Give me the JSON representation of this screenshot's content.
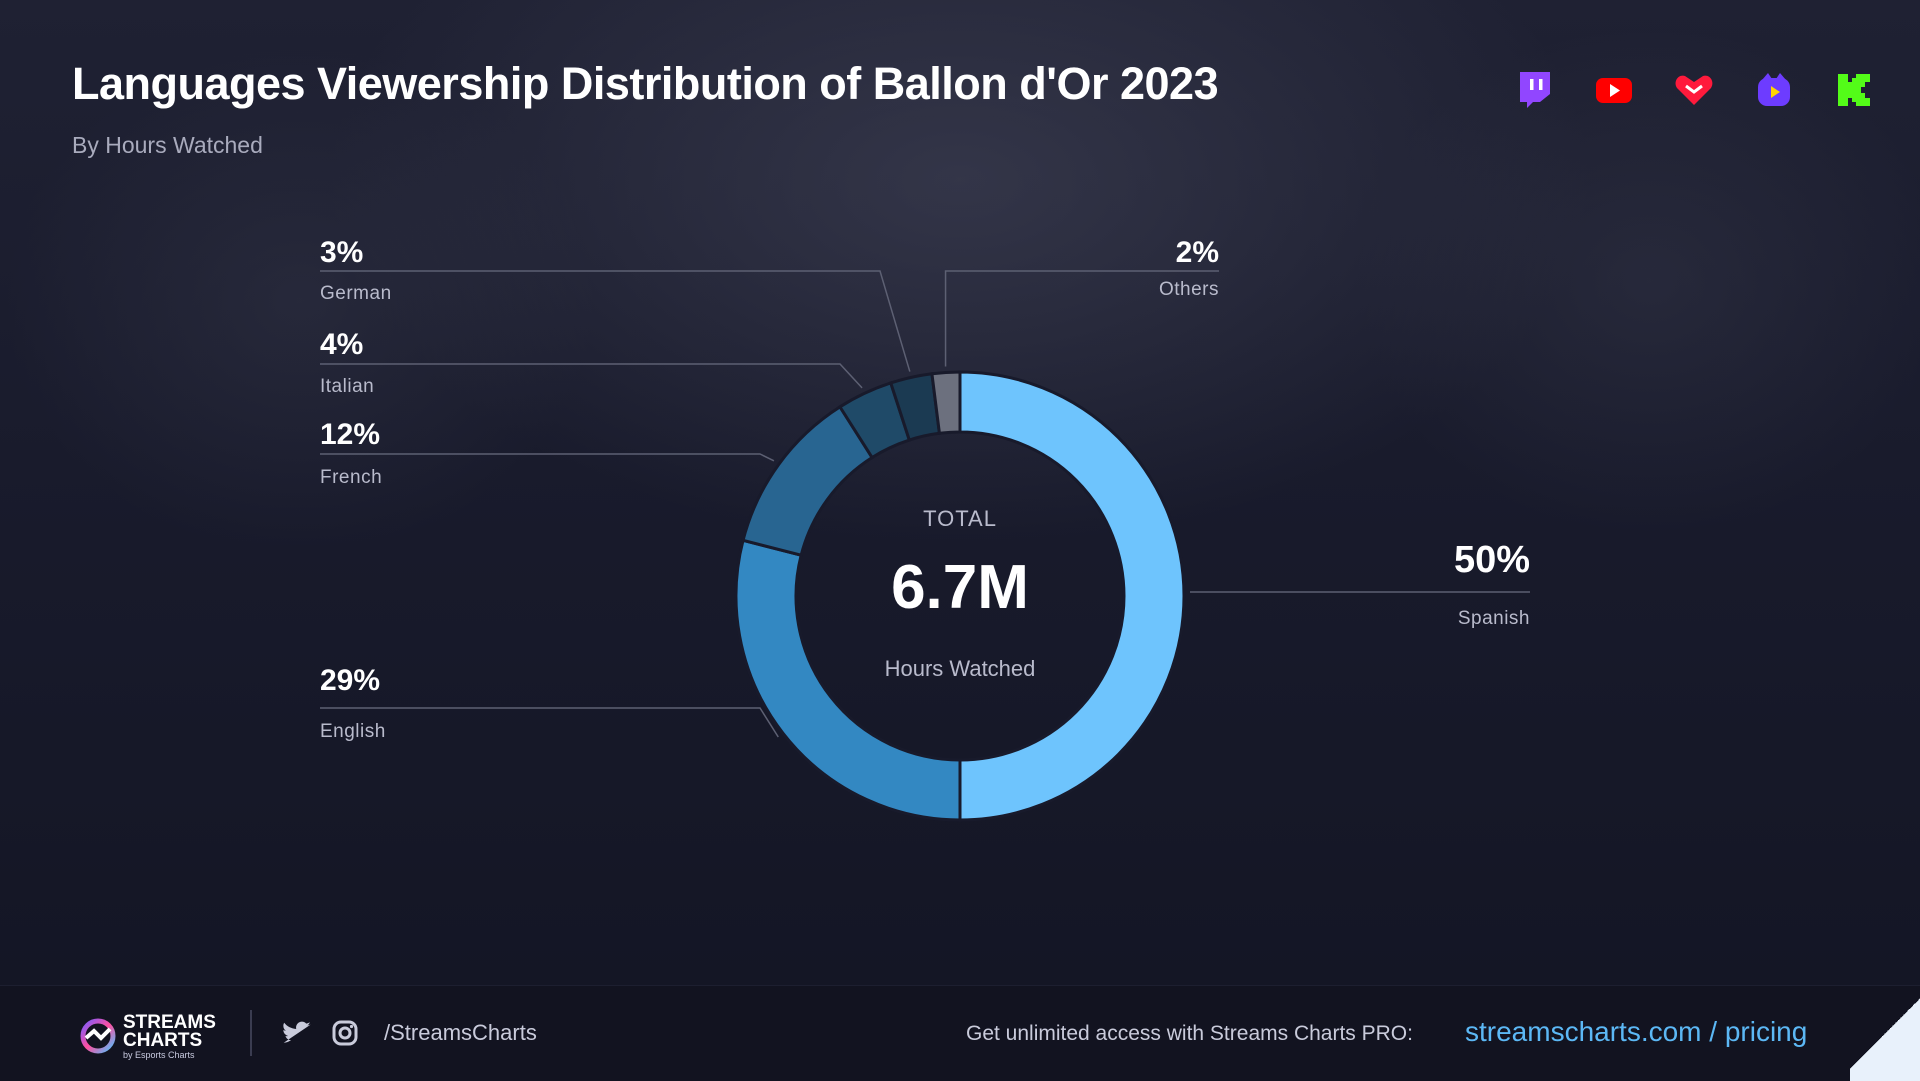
{
  "header": {
    "title": "Languages Viewership Distribution of Ballon d'Or 2023",
    "subtitle": "By Hours Watched"
  },
  "platforms": [
    {
      "name": "twitch-icon",
      "color": "#9146ff"
    },
    {
      "name": "youtube-icon",
      "color": "#ff0000"
    },
    {
      "name": "vk-play-live-icon",
      "color": "#ff1a3c"
    },
    {
      "name": "trovo-icon",
      "color": "#6d3cff"
    },
    {
      "name": "kick-icon",
      "color": "#53fc18"
    }
  ],
  "chart_data": {
    "type": "pie",
    "variant": "donut",
    "title": "Languages Viewership Distribution of Ballon d'Or 2023",
    "subtitle": "By Hours Watched",
    "center": {
      "top_label": "TOTAL",
      "value": "6.7M",
      "bottom_label": "Hours Watched"
    },
    "slices": [
      {
        "label": "Spanish",
        "value": 50,
        "display": "50%",
        "color": "#6ec4fd",
        "side": "right"
      },
      {
        "label": "English",
        "value": 29,
        "display": "29%",
        "color": "#3388c2",
        "side": "left"
      },
      {
        "label": "French",
        "value": 12,
        "display": "12%",
        "color": "#286591",
        "side": "left"
      },
      {
        "label": "Italian",
        "value": 4,
        "display": "4%",
        "color": "#1f4a68",
        "side": "left"
      },
      {
        "label": "German",
        "value": 3,
        "display": "3%",
        "color": "#1b3a52",
        "side": "left"
      },
      {
        "label": "Others",
        "value": 2,
        "display": "2%",
        "color": "#6c707e",
        "side": "right"
      }
    ]
  },
  "footer": {
    "logo_main": "STREAMS CHARTS",
    "logo_sub": "by Esports Charts",
    "social_handle": "/StreamsCharts",
    "cta_text": "Get unlimited access with Streams Charts PRO:",
    "link_text": "streamscharts.com / pricing"
  }
}
